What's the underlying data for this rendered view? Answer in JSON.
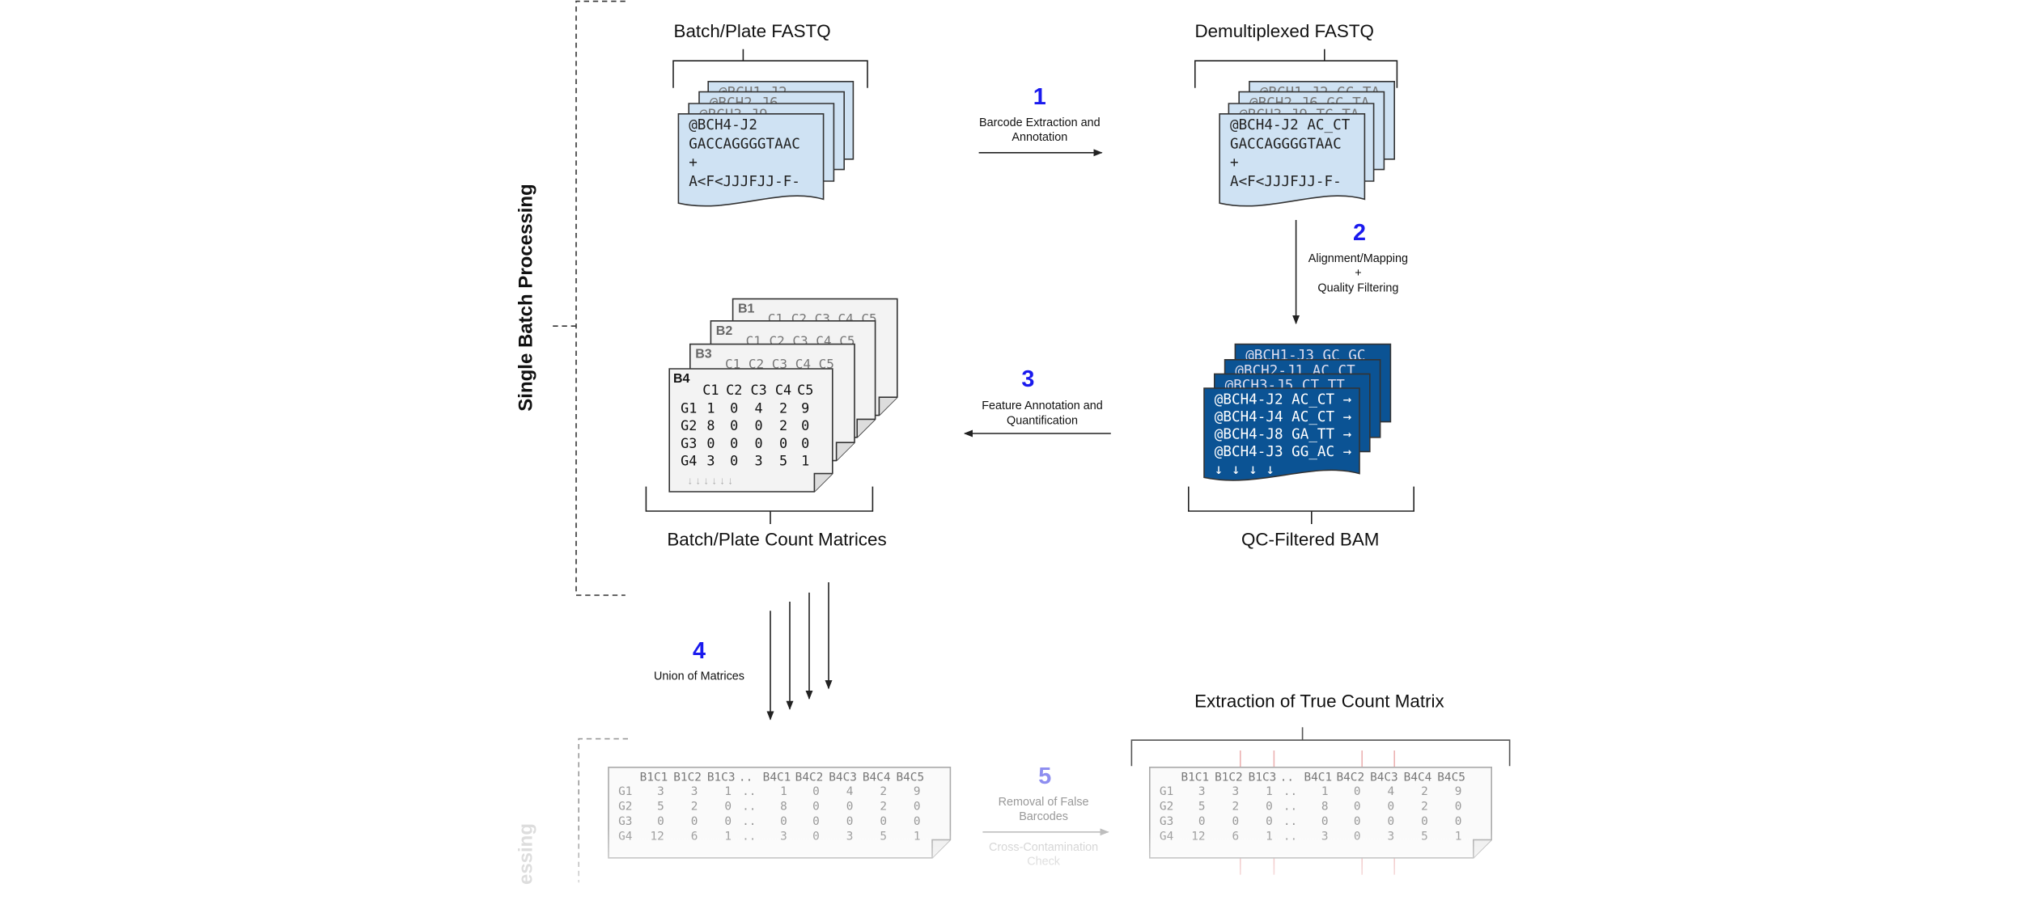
{
  "side_labels": [
    "Single Batch Processing",
    "essing"
  ],
  "nodes": [
    {
      "title": "Batch/Plate FASTQ",
      "back_cards": [
        "@BCH1-J2",
        "@BCH2-J6",
        "@BCH3-J9"
      ],
      "front_card": [
        "@BCH4-J2",
        "GACCAGGGGTAAC",
        "+",
        "A<F<JJJFJJ-F-"
      ]
    },
    {
      "title": "Demultiplexed FASTQ",
      "back_cards": [
        "@BCH1-J2 GC_TA",
        "@BCH2-J6 GC_TA",
        "@BCH3-J9 TC_TA"
      ],
      "front_card": [
        "@BCH4-J2 AC_CT",
        "GACCAGGGGTAAC",
        "+",
        "A<F<JJJFJJ-F-"
      ]
    },
    {
      "title": "QC-Filtered BAM",
      "back_cards": [
        "@BCH1-J3 GC_GC",
        "@BCH2-J1 AC_CT",
        "@BCH3-J5 CT_TT"
      ],
      "front_card": [
        "@BCH4-J2 AC_CT →",
        "@BCH4-J4 AC_CT →",
        "@BCH4-J8 GA_TT →",
        "@BCH4-J3 GG_AC →",
        "↓ ↓ ↓ ↓"
      ]
    },
    {
      "title": "Batch/Plate Count Matrices",
      "back_cards": [
        {
          "label": "B1",
          "header": "C1 C2 C3 C4 C5"
        },
        {
          "label": "B2",
          "header": "C1 C2 C3 C4 C5"
        },
        {
          "label": "B3",
          "header": "C1 C2 C3 C4 C5"
        }
      ],
      "front_card": {
        "label": "B4",
        "columns": [
          "C1",
          "C2",
          "C3",
          "C4",
          "C5"
        ],
        "rows": [
          [
            "G1",
            "1",
            "0",
            "4",
            "2",
            "9"
          ],
          [
            "G2",
            "8",
            "0",
            "0",
            "2",
            "0"
          ],
          [
            "G3",
            "0",
            "0",
            "0",
            "0",
            "0"
          ],
          [
            "G4",
            "3",
            "0",
            "3",
            "5",
            "1"
          ]
        ],
        "footer": "↓  ↓  ↓  ↓  ↓  ↓"
      }
    }
  ],
  "steps": [
    {
      "number": 1,
      "label": [
        "Barcode Extraction and",
        "Annotation"
      ]
    },
    {
      "number": 2,
      "label": [
        "Alignment/Mapping",
        "+",
        "Quality Filtering"
      ]
    },
    {
      "number": 3,
      "label": [
        "Feature Annotation and",
        "Quantification"
      ]
    },
    {
      "number": 4,
      "label": [
        "Union of Matrices"
      ]
    },
    {
      "number": 5,
      "label": [
        "Removal of False",
        "Barcodes"
      ],
      "sub_label": [
        "Cross-Contamination",
        "Check"
      ]
    }
  ],
  "union_matrix": {
    "columns": [
      "B1C1",
      "B1C2",
      "B1C3",
      "..",
      "B4C1",
      "B4C2",
      "B4C3",
      "B4C4",
      "B4C5"
    ],
    "rows": [
      [
        "G1",
        "3",
        "3",
        "1",
        "..",
        "1",
        "0",
        "4",
        "2",
        "9"
      ],
      [
        "G2",
        "5",
        "2",
        "0",
        "..",
        "8",
        "0",
        "0",
        "2",
        "0"
      ],
      [
        "G3",
        "0",
        "0",
        "0",
        "..",
        "0",
        "0",
        "0",
        "0",
        "0"
      ],
      [
        "G4",
        "12",
        "6",
        "1",
        "..",
        "3",
        "0",
        "3",
        "5",
        "1"
      ]
    ]
  },
  "true_matrix": {
    "title": "Extraction of True Count Matrix",
    "columns": [
      "B1C1",
      "B1C2",
      "B1C3",
      "..",
      "B4C1",
      "B4C2",
      "B4C3",
      "B4C4",
      "B4C5"
    ],
    "rows": [
      [
        "G1",
        "3",
        "3",
        "1",
        "..",
        "1",
        "0",
        "4",
        "2",
        "9"
      ],
      [
        "G2",
        "5",
        "2",
        "0",
        "..",
        "8",
        "0",
        "0",
        "2",
        "0"
      ],
      [
        "G3",
        "0",
        "0",
        "0",
        "..",
        "0",
        "0",
        "0",
        "0",
        "0"
      ],
      [
        "G4",
        "12",
        "6",
        "1",
        "..",
        "3",
        "0",
        "3",
        "5",
        "1"
      ]
    ]
  }
}
